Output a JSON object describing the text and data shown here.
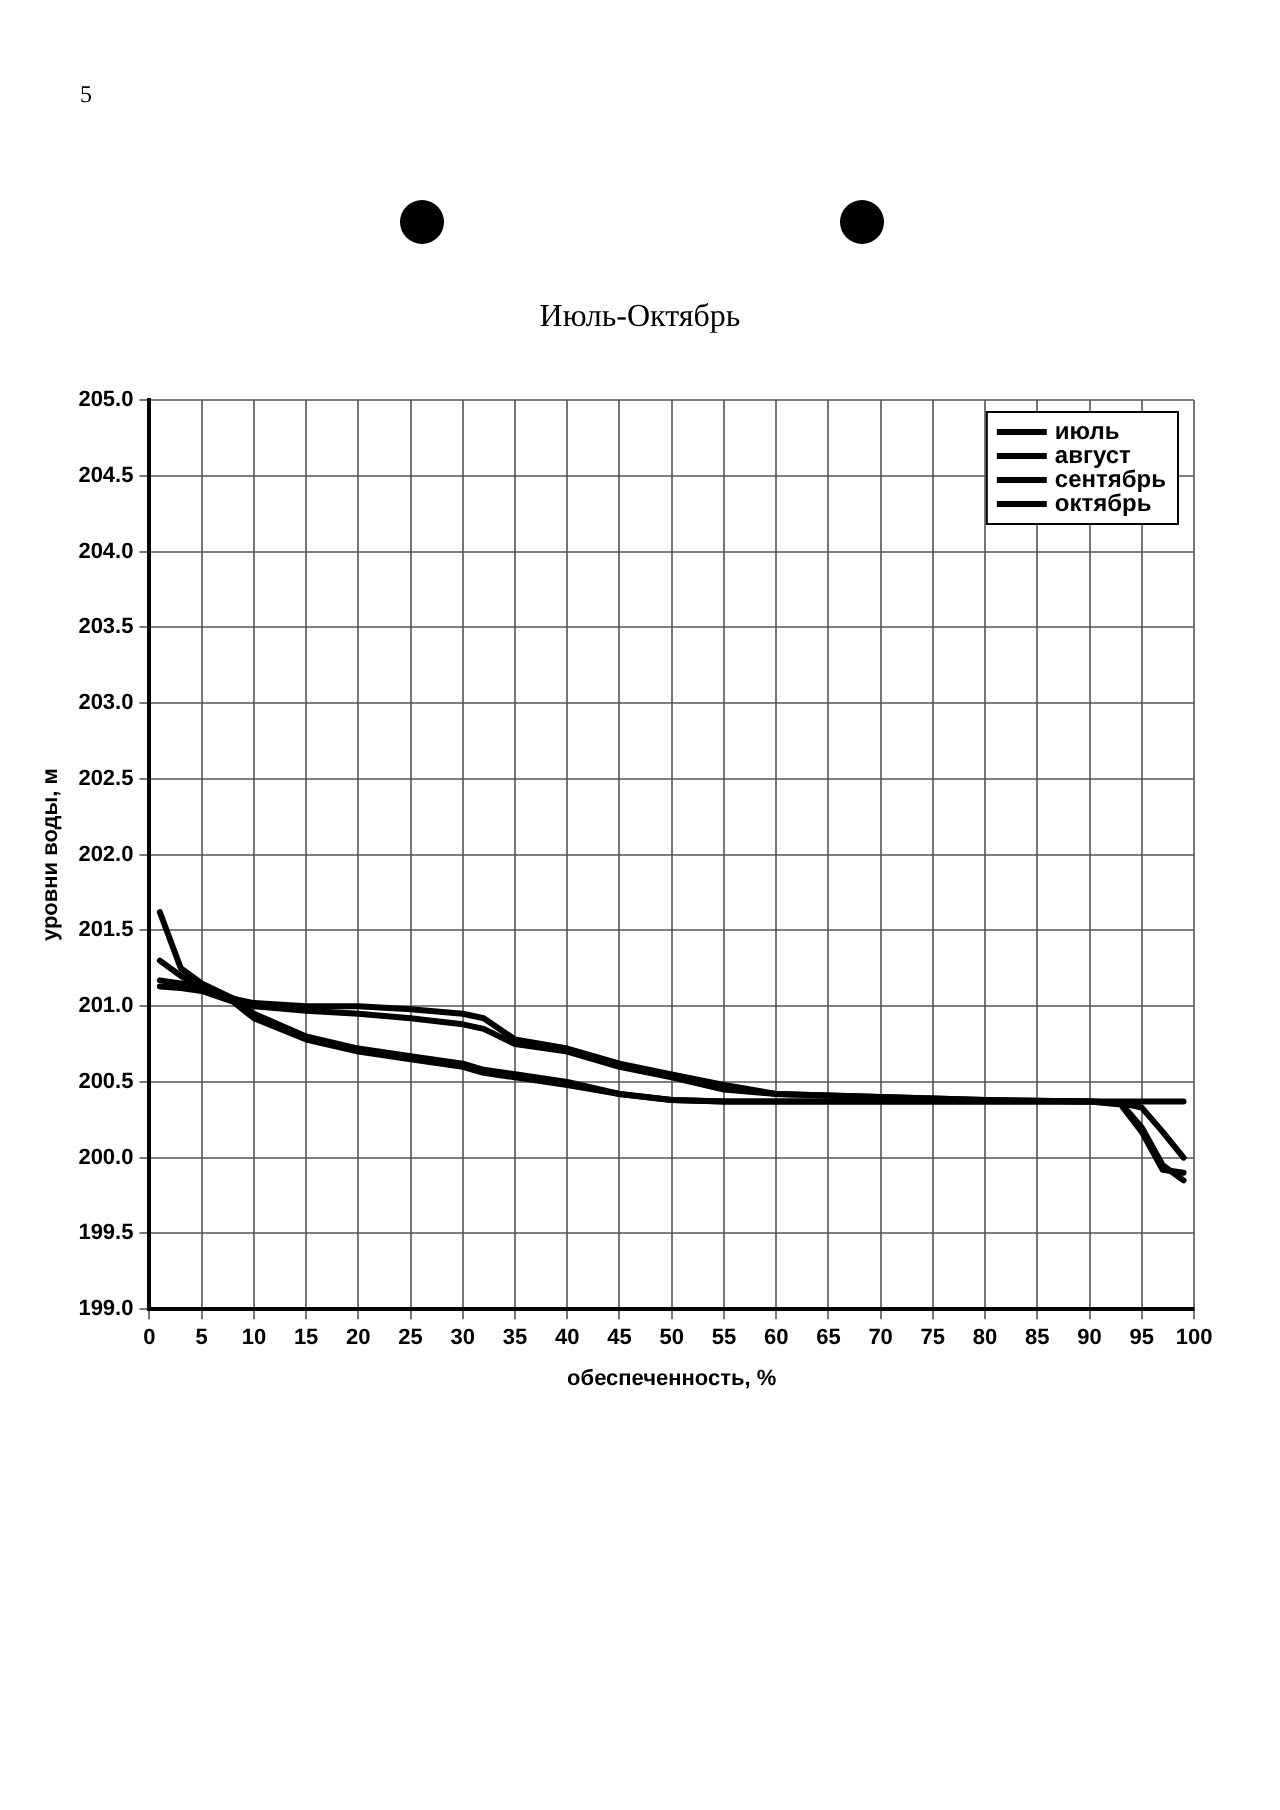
{
  "chart_data": {
    "type": "line",
    "title": "Июль-Октябрь",
    "xlabel": "обеспеченность, %",
    "ylabel": "уровни воды, м",
    "annotations": [
      "5"
    ],
    "x": [
      1,
      3,
      5,
      8,
      10,
      15,
      20,
      25,
      30,
      32,
      35,
      40,
      45,
      50,
      55,
      60,
      70,
      80,
      90,
      93,
      95,
      97,
      99
    ],
    "series": [
      {
        "name": "июль",
        "color": "#000000",
        "values": [
          201.62,
          201.25,
          201.15,
          201.05,
          201.02,
          201.0,
          201.0,
          200.98,
          200.95,
          200.92,
          200.78,
          200.72,
          200.62,
          200.55,
          200.48,
          200.42,
          200.4,
          200.38,
          200.37,
          200.37,
          200.37,
          200.37,
          200.37
        ]
      },
      {
        "name": "август",
        "color": "#000000",
        "values": [
          201.3,
          201.2,
          201.12,
          201.05,
          201.0,
          200.97,
          200.95,
          200.92,
          200.88,
          200.85,
          200.75,
          200.7,
          200.6,
          200.53,
          200.45,
          200.42,
          200.4,
          200.38,
          200.37,
          200.36,
          200.33,
          200.17,
          200.0
        ]
      },
      {
        "name": "сентябрь",
        "color": "#000000",
        "values": [
          201.17,
          201.15,
          201.12,
          201.05,
          200.95,
          200.8,
          200.72,
          200.67,
          200.62,
          200.58,
          200.55,
          200.5,
          200.42,
          200.38,
          200.37,
          200.37,
          200.37,
          200.37,
          200.37,
          200.36,
          200.2,
          199.95,
          199.85
        ]
      },
      {
        "name": "октябрь",
        "color": "#000000",
        "values": [
          201.13,
          201.12,
          201.1,
          201.03,
          200.92,
          200.78,
          200.7,
          200.65,
          200.6,
          200.56,
          200.53,
          200.48,
          200.42,
          200.38,
          200.37,
          200.37,
          200.37,
          200.37,
          200.37,
          200.35,
          200.17,
          199.92,
          199.9
        ]
      }
    ],
    "xlim": [
      0,
      100
    ],
    "xticks": [
      0,
      5,
      10,
      15,
      20,
      25,
      30,
      35,
      40,
      45,
      50,
      55,
      60,
      65,
      70,
      75,
      80,
      85,
      90,
      95,
      100
    ],
    "ylim": [
      199,
      205
    ],
    "yticks": [
      {
        "value": 199,
        "label": "199.0"
      },
      199.5,
      {
        "value": 200,
        "label": "200.0"
      },
      200.5,
      {
        "value": 201,
        "label": "201.0"
      },
      201.5,
      {
        "value": 202,
        "label": "202.0"
      },
      202.5,
      {
        "value": 203,
        "label": "203.0"
      },
      203.5,
      {
        "value": 204,
        "label": "204.0"
      },
      204.5,
      {
        "value": 205,
        "label": "205.0"
      }
    ],
    "grid": true,
    "legend": "top right",
    "marker": "none",
    "line_style": "solid"
  }
}
